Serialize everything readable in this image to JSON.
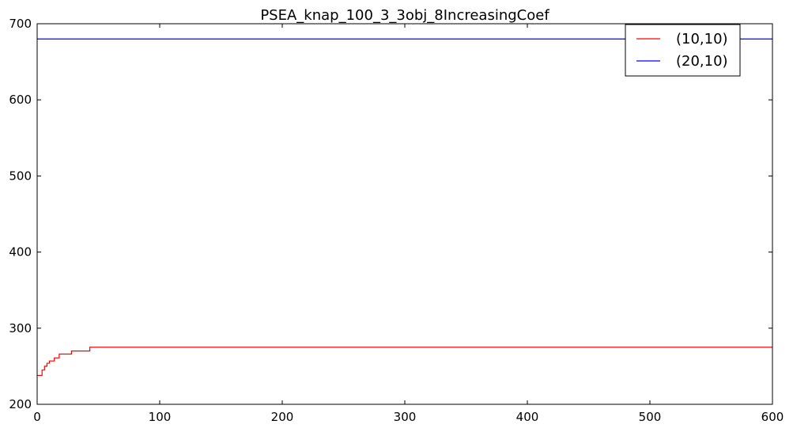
{
  "chart_data": {
    "type": "line",
    "title": "PSEA_knap_100_3_3obj_8IncreasingCoef",
    "xlabel": "",
    "ylabel": "",
    "xlim": [
      0,
      600
    ],
    "ylim": [
      200,
      700
    ],
    "x_ticks": [
      0,
      100,
      200,
      300,
      400,
      500,
      600
    ],
    "y_ticks": [
      200,
      300,
      400,
      500,
      600,
      700
    ],
    "grid": false,
    "legend_position": "top-right",
    "series": [
      {
        "name": "(10,10)",
        "color": "#ff0000",
        "points": [
          [
            0,
            238
          ],
          [
            4,
            238
          ],
          [
            4,
            245
          ],
          [
            6,
            245
          ],
          [
            6,
            250
          ],
          [
            8,
            250
          ],
          [
            8,
            254
          ],
          [
            10,
            254
          ],
          [
            10,
            257
          ],
          [
            14,
            257
          ],
          [
            14,
            261
          ],
          [
            18,
            261
          ],
          [
            18,
            266
          ],
          [
            28,
            266
          ],
          [
            28,
            270
          ],
          [
            43,
            270
          ],
          [
            43,
            275
          ],
          [
            600,
            275
          ]
        ]
      },
      {
        "name": "(20,10)",
        "color": "#0000ff",
        "points": [
          [
            0,
            680
          ],
          [
            600,
            680
          ]
        ]
      }
    ]
  }
}
